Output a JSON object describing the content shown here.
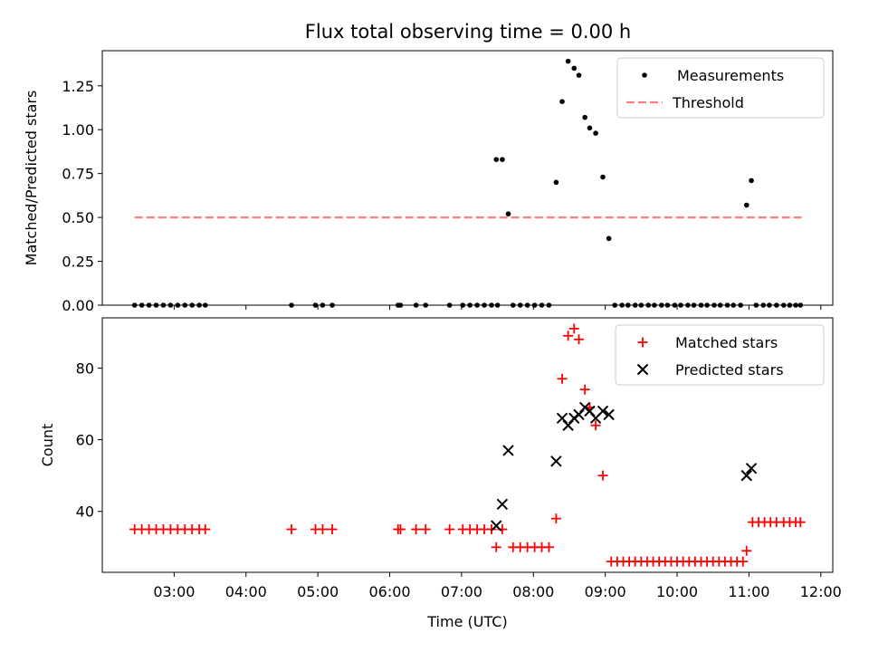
{
  "figure_title": "Flux total observing time = 0.00 h",
  "chart_data": [
    {
      "type": "scatter",
      "title": "Flux total observing time = 0.00 h",
      "xlabel": "",
      "ylabel": "Matched/Predicted stars",
      "xlim": [
        "02:00",
        "12:10"
      ],
      "ylim": [
        0,
        1.45
      ],
      "y_ticks": [
        0.0,
        0.25,
        0.5,
        0.75,
        1.0,
        1.25
      ],
      "y_tick_labels": [
        "0.00",
        "0.25",
        "0.50",
        "0.75",
        "1.00",
        "1.25"
      ],
      "legend_position": "top-right",
      "series": [
        {
          "name": "Measurements",
          "marker": "dot",
          "color": "#000000",
          "points": [
            [
              "02:27",
              0
            ],
            [
              "02:33",
              0
            ],
            [
              "02:39",
              0
            ],
            [
              "02:45",
              0
            ],
            [
              "02:51",
              0
            ],
            [
              "02:57",
              0
            ],
            [
              "03:03",
              0
            ],
            [
              "03:09",
              0
            ],
            [
              "03:15",
              0
            ],
            [
              "03:21",
              0
            ],
            [
              "03:26",
              0
            ],
            [
              "04:38",
              0
            ],
            [
              "04:58",
              0
            ],
            [
              "05:04",
              0
            ],
            [
              "05:12",
              0
            ],
            [
              "06:07",
              0
            ],
            [
              "06:09",
              0
            ],
            [
              "06:22",
              0
            ],
            [
              "06:30",
              0
            ],
            [
              "06:50",
              0
            ],
            [
              "07:01",
              0
            ],
            [
              "07:07",
              0
            ],
            [
              "07:13",
              0
            ],
            [
              "07:19",
              0
            ],
            [
              "07:25",
              0
            ],
            [
              "07:30",
              0
            ],
            [
              "07:29",
              0.83
            ],
            [
              "07:34",
              0.83
            ],
            [
              "07:39",
              0.52
            ],
            [
              "07:43",
              0
            ],
            [
              "07:49",
              0
            ],
            [
              "07:55",
              0
            ],
            [
              "08:01",
              0
            ],
            [
              "08:07",
              0
            ],
            [
              "08:13",
              0
            ],
            [
              "08:19",
              0.7
            ],
            [
              "08:24",
              1.16
            ],
            [
              "08:29",
              1.39
            ],
            [
              "08:34",
              1.35
            ],
            [
              "08:38",
              1.31
            ],
            [
              "08:43",
              1.07
            ],
            [
              "08:47",
              1.01
            ],
            [
              "08:52",
              0.98
            ],
            [
              "08:58",
              0.73
            ],
            [
              "09:03",
              0.38
            ],
            [
              "09:08",
              0
            ],
            [
              "09:14",
              0
            ],
            [
              "09:19",
              0
            ],
            [
              "09:25",
              0
            ],
            [
              "09:30",
              0
            ],
            [
              "09:36",
              0
            ],
            [
              "09:41",
              0
            ],
            [
              "09:47",
              0
            ],
            [
              "09:52",
              0
            ],
            [
              "09:58",
              0
            ],
            [
              "10:03",
              0
            ],
            [
              "10:09",
              0
            ],
            [
              "10:14",
              0
            ],
            [
              "10:20",
              0
            ],
            [
              "10:25",
              0
            ],
            [
              "10:31",
              0
            ],
            [
              "10:36",
              0
            ],
            [
              "10:42",
              0
            ],
            [
              "10:47",
              0
            ],
            [
              "10:53",
              0
            ],
            [
              "10:58",
              0.57
            ],
            [
              "11:02",
              0.71
            ],
            [
              "11:06",
              0
            ],
            [
              "11:12",
              0
            ],
            [
              "11:17",
              0
            ],
            [
              "11:23",
              0
            ],
            [
              "11:29",
              0
            ],
            [
              "11:34",
              0
            ],
            [
              "11:39",
              0
            ],
            [
              "11:43",
              0
            ]
          ]
        },
        {
          "name": "Threshold",
          "style": "dashed",
          "color": "#ff7f7f",
          "points": [
            [
              "02:27",
              0.5
            ],
            [
              "11:44",
              0.5
            ]
          ]
        }
      ]
    },
    {
      "type": "scatter",
      "title": "",
      "xlabel": "Time (UTC)",
      "ylabel": "Count",
      "xlim": [
        "02:00",
        "12:10"
      ],
      "ylim": [
        23,
        94
      ],
      "y_ticks": [
        40,
        60,
        80
      ],
      "y_tick_labels": [
        "40",
        "60",
        "80"
      ],
      "x_ticks": [
        "03:00",
        "04:00",
        "05:00",
        "06:00",
        "07:00",
        "08:00",
        "09:00",
        "10:00",
        "11:00",
        "12:00"
      ],
      "legend_position": "top-right",
      "series": [
        {
          "name": "Matched stars",
          "marker": "plus",
          "color": "#ff0000",
          "points": [
            [
              "02:27",
              35
            ],
            [
              "02:33",
              35
            ],
            [
              "02:39",
              35
            ],
            [
              "02:45",
              35
            ],
            [
              "02:51",
              35
            ],
            [
              "02:57",
              35
            ],
            [
              "03:03",
              35
            ],
            [
              "03:09",
              35
            ],
            [
              "03:15",
              35
            ],
            [
              "03:21",
              35
            ],
            [
              "03:26",
              35
            ],
            [
              "04:38",
              35
            ],
            [
              "04:58",
              35
            ],
            [
              "05:04",
              35
            ],
            [
              "05:12",
              35
            ],
            [
              "06:07",
              35
            ],
            [
              "06:09",
              35
            ],
            [
              "06:22",
              35
            ],
            [
              "06:30",
              35
            ],
            [
              "06:50",
              35
            ],
            [
              "07:01",
              35
            ],
            [
              "07:07",
              35
            ],
            [
              "07:13",
              35
            ],
            [
              "07:19",
              35
            ],
            [
              "07:25",
              35
            ],
            [
              "07:34",
              35
            ],
            [
              "07:29",
              30
            ],
            [
              "07:43",
              30
            ],
            [
              "07:49",
              30
            ],
            [
              "07:55",
              30
            ],
            [
              "08:01",
              30
            ],
            [
              "08:07",
              30
            ],
            [
              "08:13",
              30
            ],
            [
              "08:19",
              38
            ],
            [
              "08:24",
              77
            ],
            [
              "08:29",
              89
            ],
            [
              "08:34",
              91
            ],
            [
              "08:38",
              88
            ],
            [
              "08:43",
              74
            ],
            [
              "08:47",
              69
            ],
            [
              "08:52",
              64
            ],
            [
              "08:58",
              50
            ],
            [
              "09:05",
              26
            ],
            [
              "09:10",
              26
            ],
            [
              "09:15",
              26
            ],
            [
              "09:20",
              26
            ],
            [
              "09:25",
              26
            ],
            [
              "09:30",
              26
            ],
            [
              "09:35",
              26
            ],
            [
              "09:40",
              26
            ],
            [
              "09:45",
              26
            ],
            [
              "09:50",
              26
            ],
            [
              "09:55",
              26
            ],
            [
              "10:00",
              26
            ],
            [
              "10:05",
              26
            ],
            [
              "10:10",
              26
            ],
            [
              "10:15",
              26
            ],
            [
              "10:20",
              26
            ],
            [
              "10:25",
              26
            ],
            [
              "10:30",
              26
            ],
            [
              "10:35",
              26
            ],
            [
              "10:40",
              26
            ],
            [
              "10:45",
              26
            ],
            [
              "10:50",
              26
            ],
            [
              "10:55",
              26
            ],
            [
              "10:58",
              29
            ],
            [
              "11:03",
              37
            ],
            [
              "11:08",
              37
            ],
            [
              "11:13",
              37
            ],
            [
              "11:18",
              37
            ],
            [
              "11:23",
              37
            ],
            [
              "11:29",
              37
            ],
            [
              "11:34",
              37
            ],
            [
              "11:39",
              37
            ],
            [
              "11:43",
              37
            ]
          ]
        },
        {
          "name": "Predicted stars",
          "marker": "x",
          "color": "#000000",
          "points": [
            [
              "07:29",
              36
            ],
            [
              "07:34",
              42
            ],
            [
              "07:39",
              57
            ],
            [
              "08:19",
              54
            ],
            [
              "08:24",
              66
            ],
            [
              "08:29",
              64
            ],
            [
              "08:34",
              66
            ],
            [
              "08:38",
              67
            ],
            [
              "08:43",
              69
            ],
            [
              "08:47",
              68
            ],
            [
              "08:52",
              66
            ],
            [
              "08:58",
              68
            ],
            [
              "09:03",
              67
            ],
            [
              "10:58",
              50
            ],
            [
              "11:02",
              52
            ]
          ]
        }
      ]
    }
  ]
}
